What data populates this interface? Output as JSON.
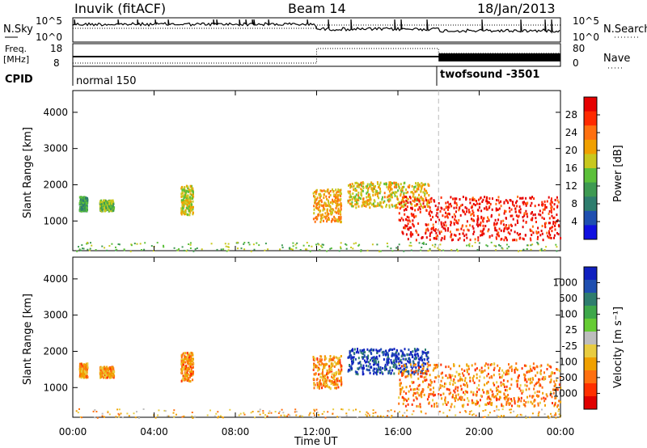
{
  "header": {
    "station": "Inuvik (fitACF)",
    "beam": "Beam 14",
    "date": "18/Jan/2013"
  },
  "summary": {
    "nsky_label": "N.Sky",
    "nsearch_label": "N.Search",
    "freq_label_1": "Freq.",
    "freq_label_2": "[MHz]",
    "nave_label": "Nave",
    "cpid_label": "CPID",
    "nsky_ticks": [
      "10^5",
      "10^0"
    ],
    "nsearch_ticks": [
      "10^5",
      "10^0"
    ],
    "freq_ticks": [
      "18",
      "8"
    ],
    "nave_ticks": [
      "80",
      "0"
    ],
    "cpid_modes": [
      {
        "name": "normal 150",
        "start_hour": 0
      },
      {
        "name": "twofsound -3501",
        "start_hour": 18
      }
    ]
  },
  "colors": {
    "power_scale": [
      "#1010e0",
      "#1f4fb0",
      "#2e7d6e",
      "#3e9a52",
      "#5cc03a",
      "#c8c81e",
      "#f0a000",
      "#ff7010",
      "#ff2a00",
      "#e60000"
    ],
    "velocity_scale": [
      "#1020c0",
      "#1f4fb0",
      "#2e7d6e",
      "#3ea84a",
      "#66cc33",
      "#bdbdbd",
      "#e8cc40",
      "#f0a000",
      "#ff7010",
      "#ff3000",
      "#e00000"
    ]
  },
  "chart_data": [
    {
      "type": "heatmap",
      "panel": "power",
      "xlabel": "",
      "ylabel": "Slant Range [km]",
      "xlim_hours": [
        0,
        24
      ],
      "ylim": [
        180,
        4600
      ],
      "ytick_labels": [
        "1000",
        "2000",
        "3000",
        "4000"
      ],
      "yticks": [
        1000,
        2000,
        3000,
        4000
      ],
      "colorbar_label": "Power [dB]",
      "colorbar_ticks": [
        "4",
        "8",
        "12",
        "16",
        "20",
        "24",
        "28"
      ],
      "colorbar_range": [
        0,
        30
      ],
      "echo_regions": [
        {
          "hours": [
            0.3,
            0.7
          ],
          "range_km": [
            1300,
            1700
          ],
          "level": 0.35
        },
        {
          "hours": [
            1.3,
            2.0
          ],
          "range_km": [
            1300,
            1600
          ],
          "level": 0.45
        },
        {
          "hours": [
            5.3,
            5.9
          ],
          "range_km": [
            1200,
            2000
          ],
          "level": 0.55
        },
        {
          "hours": [
            11.8,
            13.2
          ],
          "range_km": [
            1000,
            1900
          ],
          "level": 0.65
        },
        {
          "hours": [
            13.5,
            17.5
          ],
          "range_km": [
            1400,
            2100
          ],
          "level": 0.6
        },
        {
          "hours": [
            16.0,
            24.0
          ],
          "range_km": [
            500,
            1700
          ],
          "level": 0.92
        }
      ]
    },
    {
      "type": "heatmap",
      "panel": "velocity",
      "xlabel": "Time UT",
      "ylabel": "Slant Range [km]",
      "xlim_hours": [
        0,
        24
      ],
      "ylim": [
        180,
        4600
      ],
      "ytick_labels": [
        "1000",
        "2000",
        "3000",
        "4000"
      ],
      "yticks": [
        1000,
        2000,
        3000,
        4000
      ],
      "xtick_labels": [
        "00:00",
        "04:00",
        "08:00",
        "12:00",
        "16:00",
        "20:00",
        "00:00"
      ],
      "xticks_hours": [
        0,
        4,
        8,
        12,
        16,
        20,
        24
      ],
      "colorbar_label": "Velocity [m s⁻¹]",
      "colorbar_ticks": [
        "1000",
        "500",
        "100",
        "25",
        "-25",
        "-100",
        "-500",
        "-1000"
      ],
      "echo_regions": [
        {
          "hours": [
            0.3,
            0.7
          ],
          "range_km": [
            1300,
            1700
          ],
          "level": 0.7
        },
        {
          "hours": [
            1.3,
            2.0
          ],
          "range_km": [
            1300,
            1600
          ],
          "level": 0.7
        },
        {
          "hours": [
            5.3,
            5.9
          ],
          "range_km": [
            1200,
            2000
          ],
          "level": 0.7
        },
        {
          "hours": [
            11.8,
            13.2
          ],
          "range_km": [
            1000,
            1900
          ],
          "level": 0.72
        },
        {
          "hours": [
            13.5,
            17.5
          ],
          "range_km": [
            1400,
            2100
          ],
          "level": 0.1
        },
        {
          "hours": [
            16.0,
            24.0
          ],
          "range_km": [
            500,
            1700
          ],
          "level": 0.75
        }
      ]
    }
  ]
}
